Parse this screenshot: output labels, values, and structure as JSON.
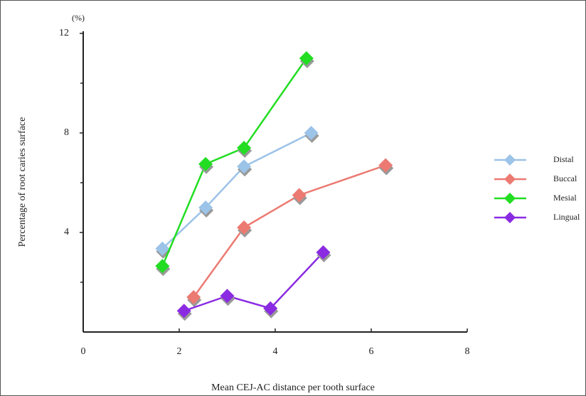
{
  "chart_data": {
    "type": "line",
    "y_unit": "(%)",
    "x_label": "Mean CEJ-AC distance per tooth surface",
    "y_label": "Percentage of root caries surface",
    "xlim": [
      0,
      8
    ],
    "xticks": [
      0,
      2,
      4,
      6,
      8
    ],
    "ylim": [
      0,
      12
    ],
    "yticks": [
      4,
      8,
      12
    ],
    "yminorticks": [
      2,
      6,
      10
    ],
    "legend": "right",
    "series": [
      {
        "name": "Distal",
        "color": "#9cc3e8",
        "x": [
          1.65,
          2.55,
          3.35,
          4.75
        ],
        "values": [
          3.35,
          5.0,
          6.65,
          8.0
        ]
      },
      {
        "name": "Buccal",
        "color": "#ec7a72",
        "x": [
          2.3,
          3.35,
          4.5,
          6.3
        ],
        "values": [
          1.4,
          4.2,
          5.5,
          6.7
        ]
      },
      {
        "name": "Mesial",
        "color": "#22dd22",
        "x": [
          1.65,
          2.55,
          3.35,
          4.65
        ],
        "values": [
          2.65,
          6.75,
          7.4,
          11.0
        ]
      },
      {
        "name": "Lingual",
        "color": "#8a2be2",
        "x": [
          2.1,
          3.0,
          3.9,
          5.0
        ],
        "values": [
          0.85,
          1.45,
          0.95,
          3.2
        ]
      }
    ]
  }
}
